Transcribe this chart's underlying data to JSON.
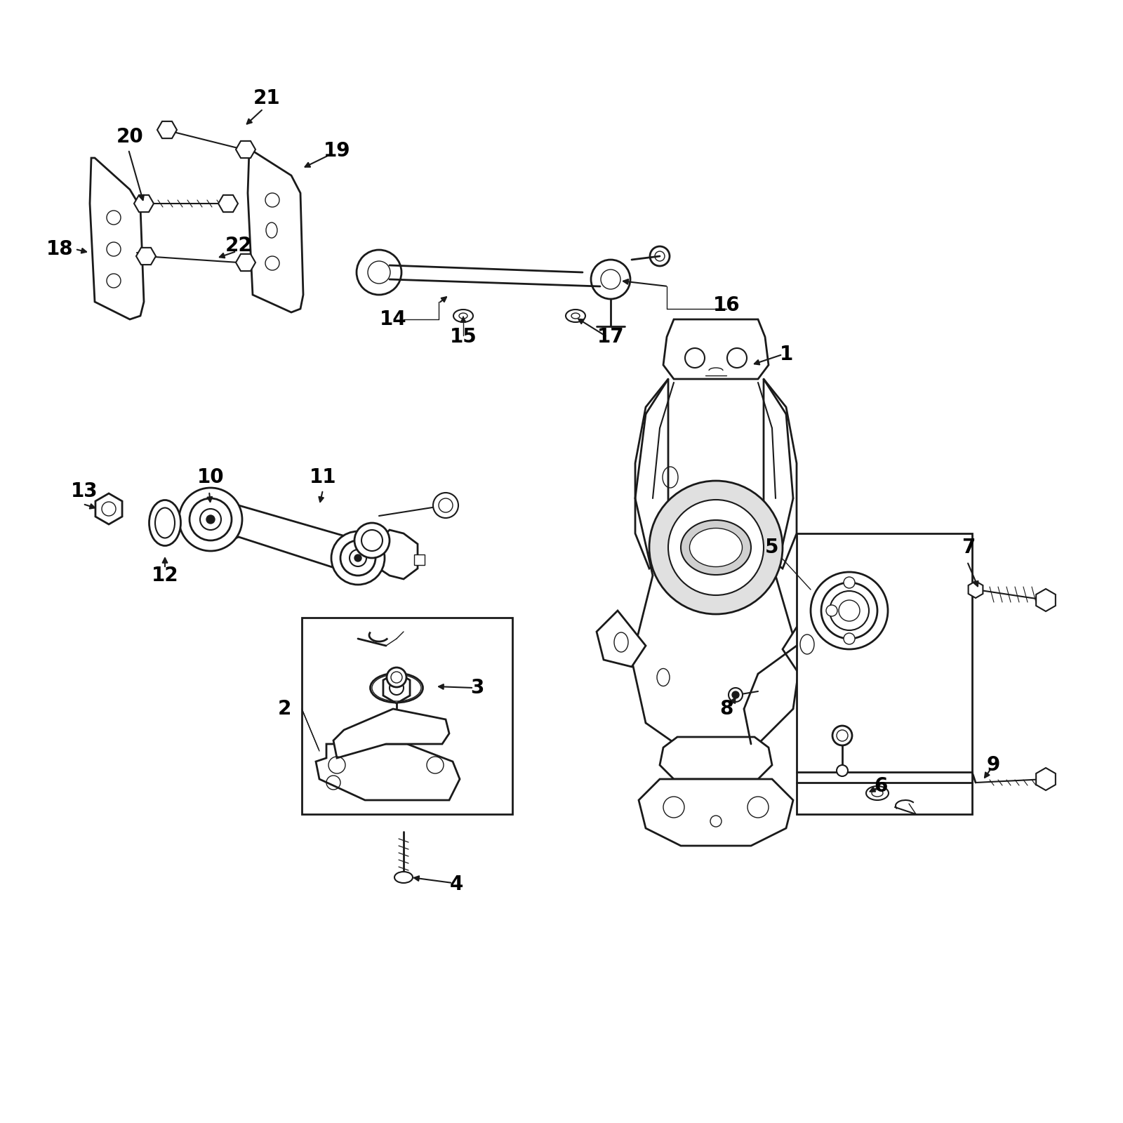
{
  "background_color": "#ffffff",
  "line_color": "#1a1a1a",
  "text_color": "#000000",
  "label_fontsize": 20,
  "fig_width": 16,
  "fig_height": 16,
  "xlim": [
    0,
    1600
  ],
  "ylim": [
    0,
    1600
  ]
}
